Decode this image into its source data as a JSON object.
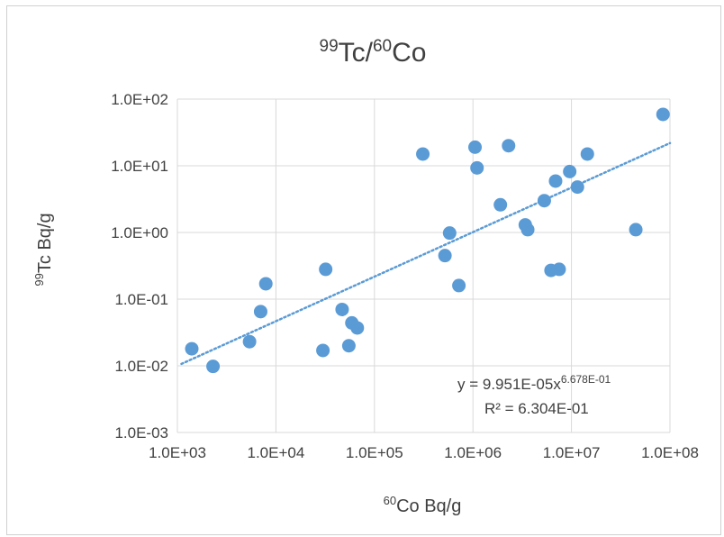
{
  "chart_data": {
    "type": "scatter",
    "title": {
      "sup1": "99",
      "main1": "Tc/",
      "sup2": "60",
      "main2": "Co"
    },
    "xlabel": {
      "sup": "60",
      "text": "Co Bq/g"
    },
    "ylabel": {
      "sup": "99",
      "text": "Tc Bq/g"
    },
    "x_scale": "log",
    "y_scale": "log",
    "xlim": [
      1000,
      100000000
    ],
    "ylim": [
      0.001,
      100
    ],
    "x_ticks": [
      1000,
      10000,
      100000,
      1000000,
      10000000,
      100000000
    ],
    "x_tick_labels": [
      "1.0E+03",
      "1.0E+04",
      "1.0E+05",
      "1.0E+06",
      "1.0E+07",
      "1.0E+08"
    ],
    "y_ticks": [
      0.001,
      0.01,
      0.1,
      1,
      10,
      100
    ],
    "y_tick_labels": [
      "1.0E-03",
      "1.0E-02",
      "1.0E-01",
      "1.0E+00",
      "1.0E+01",
      "1.0E+02"
    ],
    "grid": true,
    "marker_color": "#5b9bd5",
    "trendline_color": "#5b9bd5",
    "points": [
      {
        "x": 1400,
        "y": 0.018
      },
      {
        "x": 2300,
        "y": 0.0098
      },
      {
        "x": 5400,
        "y": 0.023
      },
      {
        "x": 7000,
        "y": 0.065
      },
      {
        "x": 7900,
        "y": 0.17
      },
      {
        "x": 30000,
        "y": 0.017
      },
      {
        "x": 32000,
        "y": 0.28
      },
      {
        "x": 47000,
        "y": 0.07
      },
      {
        "x": 55000,
        "y": 0.02
      },
      {
        "x": 59000,
        "y": 0.044
      },
      {
        "x": 67000,
        "y": 0.037
      },
      {
        "x": 310000,
        "y": 15
      },
      {
        "x": 520000,
        "y": 0.45
      },
      {
        "x": 580000,
        "y": 0.98
      },
      {
        "x": 720000,
        "y": 0.16
      },
      {
        "x": 1050000,
        "y": 19
      },
      {
        "x": 1100000,
        "y": 9.3
      },
      {
        "x": 1900000,
        "y": 2.6
      },
      {
        "x": 2300000,
        "y": 20
      },
      {
        "x": 3400000,
        "y": 1.3
      },
      {
        "x": 3600000,
        "y": 1.1
      },
      {
        "x": 5300000,
        "y": 3
      },
      {
        "x": 6200000,
        "y": 0.27
      },
      {
        "x": 6900000,
        "y": 5.9
      },
      {
        "x": 7500000,
        "y": 0.28
      },
      {
        "x": 9600000,
        "y": 8.2
      },
      {
        "x": 11500000,
        "y": 4.8
      },
      {
        "x": 14500000,
        "y": 15
      },
      {
        "x": 45000000,
        "y": 1.1
      },
      {
        "x": 85000000,
        "y": 59
      }
    ],
    "trendline": {
      "type": "power",
      "coefficient": 9.951e-05,
      "exponent": 0.6678,
      "equation_prefix": "y = 9.951E-05x",
      "equation_exponent": "6.678E-01",
      "r_squared_label": "R² = 6.304E-01"
    }
  }
}
